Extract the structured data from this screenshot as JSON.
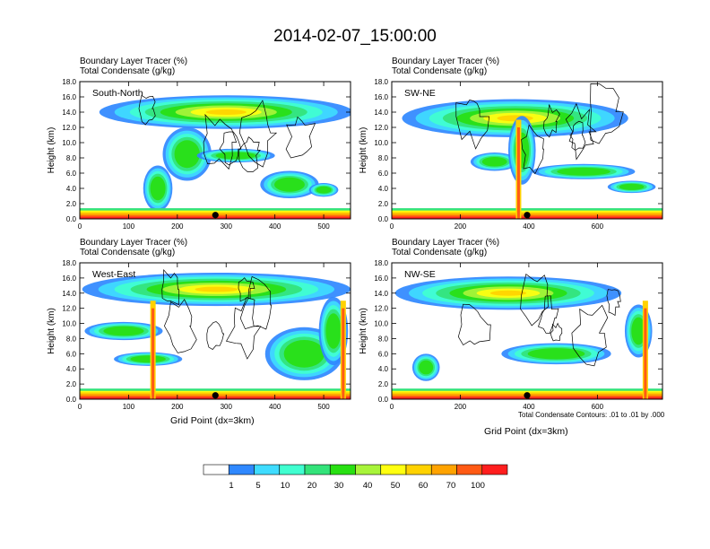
{
  "title": "2014-02-07_15:00:00",
  "colors": [
    "#ffffff",
    "#2f88ff",
    "#3fdcff",
    "#40ffd0",
    "#33e37a",
    "#28e012",
    "#a8f43a",
    "#ffff10",
    "#ffd200",
    "#ffa300",
    "#ff5a14",
    "#ff1e1e"
  ],
  "colorbar": {
    "labels": [
      "1",
      "5",
      "10",
      "20",
      "30",
      "40",
      "50",
      "60",
      "70",
      "100"
    ]
  },
  "xlabel": "Grid Point (dx=3km)",
  "contour_note": "Total Condensate Contours: .01 to .01 by .000",
  "chart_data": [
    {
      "type": "heatmap",
      "label": "South-North",
      "line1": "Boundary Layer Tracer   (%)",
      "line2": "Total Condensate   (g/kg)",
      "ylabel": "Height (km)",
      "xlim": [
        0,
        555
      ],
      "ylim": [
        0,
        18
      ],
      "xticks": [
        0,
        100,
        200,
        300,
        400,
        500
      ],
      "yticks": [
        "0.0",
        "2.0",
        "4.0",
        "6.0",
        "8.0",
        "10.0",
        "12.0",
        "14.0",
        "16.0",
        "18.0"
      ],
      "marker_x": 278,
      "xlabel_shown": false
    },
    {
      "type": "heatmap",
      "label": "SW-NE",
      "line1": "Boundary Layer Tracer   (%)",
      "line2": "Total Condensate   (g/kg)",
      "ylabel": "Height (km)",
      "xlim": [
        0,
        790
      ],
      "ylim": [
        0,
        18
      ],
      "xticks": [
        0,
        200,
        400,
        600
      ],
      "yticks": [
        "0.0",
        "2.0",
        "4.0",
        "6.0",
        "8.0",
        "10.0",
        "12.0",
        "14.0",
        "16.0",
        "18.0"
      ],
      "marker_x": 395,
      "xlabel_shown": false
    },
    {
      "type": "heatmap",
      "label": "West-East",
      "line1": "Boundary Layer Tracer   (%)",
      "line2": "Total Condensate   (g/kg)",
      "ylabel": "Height (km)",
      "xlim": [
        0,
        555
      ],
      "ylim": [
        0,
        18
      ],
      "xticks": [
        0,
        100,
        200,
        300,
        400,
        500
      ],
      "yticks": [
        "0.0",
        "2.0",
        "4.0",
        "6.0",
        "8.0",
        "10.0",
        "12.0",
        "14.0",
        "16.0",
        "18.0"
      ],
      "marker_x": 278,
      "xlabel_shown": true
    },
    {
      "type": "heatmap",
      "label": "NW-SE",
      "line1": "Boundary Layer Tracer   (%)",
      "line2": "Total Condensate   (g/kg)",
      "ylabel": "Height (km)",
      "xlim": [
        0,
        790
      ],
      "ylim": [
        0,
        18
      ],
      "xticks": [
        0,
        200,
        400,
        600
      ],
      "yticks": [
        "0.0",
        "2.0",
        "4.0",
        "6.0",
        "8.0",
        "10.0",
        "12.0",
        "14.0",
        "16.0",
        "18.0"
      ],
      "marker_x": 395,
      "xlabel_shown": true
    }
  ]
}
